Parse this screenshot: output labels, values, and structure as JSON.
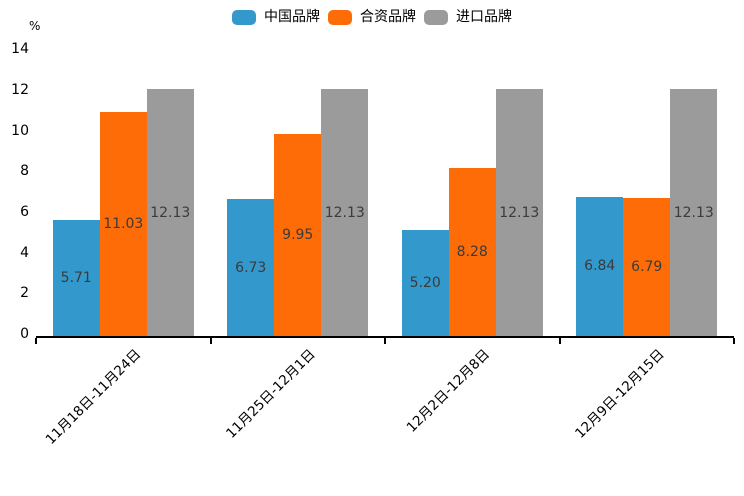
{
  "chart": {
    "background": "#ffffff",
    "axis_color": "#000000",
    "value_label_color": "#3b3b3b"
  },
  "chart_data": {
    "type": "bar",
    "title": "",
    "ylabel": "%",
    "xlabel": "",
    "categories": [
      "11月18日-11月24日",
      "11月25日-12月1日",
      "12月2日-12月8日",
      "12月9日-12月15日"
    ],
    "series": [
      {
        "name": "中国品牌",
        "color": "#3398CC",
        "values": [
          5.71,
          6.73,
          5.2,
          6.84
        ]
      },
      {
        "name": "合资品牌",
        "color": "#FD6C07",
        "values": [
          11.03,
          9.95,
          8.28,
          6.79
        ]
      },
      {
        "name": "进口品牌",
        "color": "#9B9B9B",
        "values": [
          12.13,
          12.13,
          12.13,
          12.13
        ]
      }
    ],
    "value_labels": [
      "5.71",
      "11.03",
      "12.13",
      "6.73",
      "9.95",
      "12.13",
      "5.20",
      "8.28",
      "12.13",
      "6.84",
      "6.79",
      "12.13"
    ],
    "value_label_position": "center",
    "y_ticks": [
      0,
      2,
      4,
      6,
      8,
      10,
      12,
      14
    ],
    "ylim": [
      0,
      14
    ],
    "grid": false,
    "legend_position": "top",
    "x_tick_rotation": 45
  }
}
